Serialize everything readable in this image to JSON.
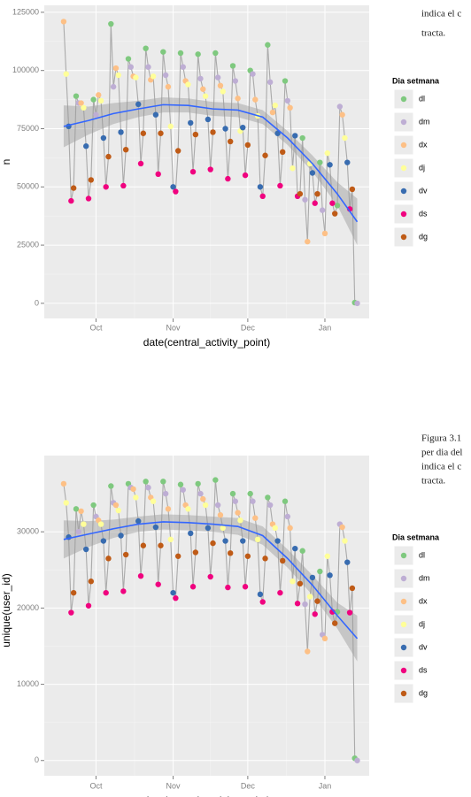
{
  "side_text": {
    "block1": [
      "indica el c",
      "tracta."
    ],
    "block2": [
      "Figura 3.1",
      "per dia del",
      "indica el c",
      "tracta."
    ]
  },
  "chart_data": [
    {
      "type": "scatter",
      "xlabel": "date(central_activity_point)",
      "ylabel": "n",
      "legend_title": "Dia setmana",
      "xlim": [
        -7.8,
        122.8
      ],
      "ylim": [
        -6500,
        128000
      ],
      "xticks": [
        {
          "value": 13,
          "label": "Oct"
        },
        {
          "value": 44,
          "label": "Nov"
        },
        {
          "value": 74,
          "label": "Dec"
        },
        {
          "value": 105,
          "label": "Jan"
        }
      ],
      "yticks": [
        0,
        25000,
        50000,
        75000,
        100000,
        125000
      ],
      "grid": true,
      "line_color": "#aaaaaa",
      "series": [
        {
          "name": "dl",
          "color": "#7fc97f",
          "x": [
            5,
            12,
            19,
            26,
            33,
            40,
            47,
            54,
            61,
            68,
            75,
            82,
            89,
            96,
            103,
            110,
            117
          ],
          "values": [
            89000,
            87500,
            120000,
            105000,
            109500,
            108000,
            107500,
            107000,
            107500,
            102000,
            100000,
            111000,
            95500,
            71000,
            60500,
            42000,
            300
          ]
        },
        {
          "name": "dm",
          "color": "#beaed4",
          "x": [
            6,
            13,
            20,
            27,
            34,
            41,
            48,
            55,
            62,
            69,
            76,
            83,
            90,
            97,
            104,
            111,
            118
          ],
          "values": [
            86000,
            81000,
            93000,
            101500,
            101500,
            98000,
            101500,
            96500,
            97000,
            95500,
            98500,
            95000,
            87000,
            44500,
            40000,
            84500,
            0
          ]
        },
        {
          "name": "dx",
          "color": "#fdc086",
          "x": [
            0,
            7,
            14,
            21,
            28,
            35,
            42,
            49,
            56,
            63,
            70,
            77,
            84,
            91,
            98,
            105,
            112
          ],
          "values": [
            121000,
            86000,
            89500,
            101000,
            97500,
            96000,
            93000,
            95500,
            92000,
            93500,
            88000,
            87500,
            82000,
            84000,
            26500,
            30000,
            81000
          ]
        },
        {
          "name": "dj",
          "color": "#ffff99",
          "x": [
            1,
            8,
            15,
            22,
            29,
            36,
            43,
            50,
            57,
            64,
            71,
            78,
            85,
            92,
            99,
            106,
            113
          ],
          "values": [
            98500,
            84000,
            87000,
            98000,
            97000,
            97500,
            76000,
            94000,
            89000,
            91000,
            74000,
            80500,
            85000,
            58000,
            60000,
            64500,
            71000
          ]
        },
        {
          "name": "dv",
          "color": "#386cb0",
          "x": [
            2,
            9,
            16,
            23,
            30,
            37,
            44,
            51,
            58,
            65,
            72,
            79,
            86,
            93,
            100,
            107,
            114
          ],
          "values": [
            76000,
            67500,
            71000,
            73500,
            85500,
            81000,
            50000,
            77500,
            79000,
            75000,
            75500,
            50000,
            73000,
            72000,
            56000,
            59500,
            60500
          ]
        },
        {
          "name": "ds",
          "color": "#f0027f",
          "x": [
            3,
            10,
            17,
            24,
            31,
            38,
            45,
            52,
            59,
            66,
            73,
            80,
            87,
            94,
            101,
            108,
            115
          ],
          "values": [
            44000,
            45000,
            50000,
            50500,
            60000,
            55500,
            48000,
            56500,
            57500,
            53500,
            55000,
            46000,
            50500,
            46000,
            43000,
            43000,
            40500
          ]
        },
        {
          "name": "dg",
          "color": "#bf5b17",
          "x": [
            4,
            11,
            18,
            25,
            32,
            39,
            46,
            53,
            60,
            67,
            74,
            81,
            88,
            95,
            102,
            109,
            116
          ],
          "values": [
            49500,
            53000,
            63000,
            66000,
            73000,
            73000,
            65500,
            72500,
            73500,
            69500,
            68000,
            63500,
            65000,
            47000,
            47000,
            38500,
            49000
          ]
        }
      ],
      "smooth": {
        "color": "#3366ff",
        "x": [
          0,
          10,
          20,
          30,
          40,
          50,
          60,
          70,
          80,
          90,
          100,
          110,
          118
        ],
        "values": [
          76000,
          78500,
          81500,
          83500,
          85300,
          85000,
          83500,
          83000,
          80000,
          71000,
          60000,
          47000,
          35000
        ],
        "lower": [
          67000,
          72500,
          77000,
          80000,
          82000,
          82000,
          80500,
          80000,
          77000,
          68000,
          56500,
          42000,
          25000
        ],
        "upper": [
          85000,
          84500,
          86000,
          87000,
          88500,
          88000,
          86500,
          86000,
          83000,
          74000,
          63500,
          52000,
          45000
        ]
      }
    },
    {
      "type": "scatter",
      "xlabel": "date(central_activity_point)",
      "ylabel": "unique(user_id)",
      "legend_title": "Dia setmana",
      "xlim": [
        -7.8,
        122.8
      ],
      "ylim": [
        -2000,
        40000
      ],
      "xticks": [
        {
          "value": 13,
          "label": "Oct"
        },
        {
          "value": 44,
          "label": "Nov"
        },
        {
          "value": 74,
          "label": "Dec"
        },
        {
          "value": 105,
          "label": "Jan"
        }
      ],
      "yticks": [
        0,
        10000,
        20000,
        30000
      ],
      "grid": true,
      "line_color": "#aaaaaa",
      "series": [
        {
          "name": "dl",
          "color": "#7fc97f",
          "x": [
            5,
            12,
            19,
            26,
            33,
            40,
            47,
            54,
            61,
            68,
            75,
            82,
            89,
            96,
            103,
            110,
            117
          ],
          "values": [
            33000,
            33500,
            36000,
            36300,
            36600,
            36600,
            36200,
            36300,
            36800,
            35000,
            35000,
            34500,
            34000,
            27500,
            24800,
            19500,
            300
          ]
        },
        {
          "name": "dm",
          "color": "#beaed4",
          "x": [
            6,
            13,
            20,
            27,
            34,
            41,
            48,
            55,
            62,
            69,
            76,
            83,
            90,
            97,
            104,
            111,
            118
          ],
          "values": [
            30000,
            32000,
            33800,
            35800,
            35800,
            35000,
            35500,
            35000,
            33500,
            34000,
            34000,
            33500,
            32000,
            20500,
            16500,
            31000,
            0
          ]
        },
        {
          "name": "dx",
          "color": "#fdc086",
          "x": [
            0,
            7,
            14,
            21,
            28,
            35,
            42,
            49,
            56,
            63,
            70,
            77,
            84,
            91,
            98,
            105,
            112
          ],
          "values": [
            36300,
            32700,
            31500,
            33500,
            35600,
            34500,
            33000,
            33500,
            34300,
            32200,
            32500,
            31800,
            31000,
            30500,
            14300,
            16000,
            30600
          ]
        },
        {
          "name": "dj",
          "color": "#ffff99",
          "x": [
            1,
            8,
            15,
            22,
            29,
            36,
            43,
            50,
            57,
            64,
            71,
            78,
            85,
            92,
            99,
            106,
            113
          ],
          "values": [
            33800,
            31000,
            31000,
            32800,
            34500,
            34000,
            29000,
            33000,
            33500,
            30500,
            31500,
            29000,
            30500,
            23500,
            21500,
            26800,
            28800
          ]
        },
        {
          "name": "dv",
          "color": "#386cb0",
          "x": [
            2,
            9,
            16,
            23,
            30,
            37,
            44,
            51,
            58,
            65,
            72,
            79,
            86,
            93,
            100,
            107,
            114
          ],
          "values": [
            29300,
            27700,
            28800,
            29500,
            31400,
            30600,
            22000,
            29800,
            30500,
            28800,
            28800,
            21800,
            28800,
            27800,
            24000,
            24300,
            26000
          ]
        },
        {
          "name": "ds",
          "color": "#f0027f",
          "x": [
            3,
            10,
            17,
            24,
            31,
            38,
            45,
            52,
            59,
            66,
            73,
            80,
            87,
            94,
            101,
            108,
            115
          ],
          "values": [
            19400,
            20300,
            22000,
            22200,
            24200,
            23100,
            21300,
            22800,
            24100,
            22700,
            22800,
            20800,
            22000,
            20600,
            19200,
            19500,
            19400
          ]
        },
        {
          "name": "dg",
          "color": "#bf5b17",
          "x": [
            4,
            11,
            18,
            25,
            32,
            39,
            46,
            53,
            60,
            67,
            74,
            81,
            88,
            95,
            102,
            109,
            116
          ],
          "values": [
            22000,
            23500,
            26500,
            27000,
            28200,
            28200,
            26800,
            27300,
            28500,
            27200,
            26800,
            26500,
            26200,
            23200,
            20900,
            18000,
            22600
          ]
        }
      ],
      "smooth": {
        "color": "#3366ff",
        "x": [
          0,
          10,
          20,
          30,
          40,
          50,
          60,
          70,
          80,
          90,
          100,
          110,
          118
        ],
        "values": [
          29000,
          29700,
          30400,
          31000,
          31300,
          31200,
          31000,
          30700,
          29500,
          26500,
          23000,
          19000,
          16000
        ],
        "lower": [
          26500,
          28000,
          29200,
          30000,
          30300,
          30200,
          30000,
          29600,
          28300,
          25300,
          21700,
          17300,
          13000
        ],
        "upper": [
          31500,
          31400,
          31600,
          32000,
          32300,
          32200,
          32000,
          31800,
          30700,
          27700,
          24300,
          20700,
          19000
        ]
      }
    }
  ]
}
